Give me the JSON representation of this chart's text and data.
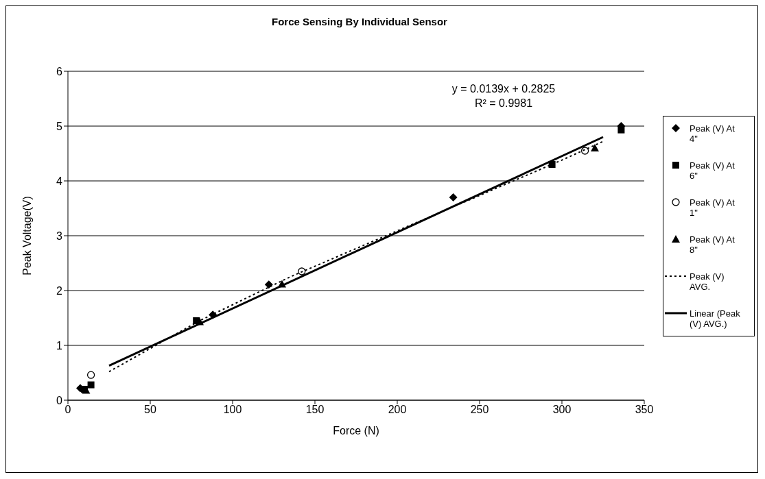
{
  "chart_data": {
    "type": "scatter",
    "title": "Force Sensing By Individual Sensor",
    "xlabel": "Force (N)",
    "ylabel": "Peak Voltage(V)",
    "annotations": [
      "y = 0.0139x + 0.2825",
      "R² = 0.9981"
    ],
    "xlim": [
      0,
      350
    ],
    "xticks": [
      0,
      50,
      100,
      150,
      200,
      250,
      300,
      350
    ],
    "ylim": [
      0,
      6
    ],
    "yticks": [
      0,
      1,
      2,
      3,
      4,
      5,
      6
    ],
    "grid": "y",
    "legend": "right",
    "series": [
      {
        "name": "Peak (V) At 4\"",
        "color": "#000000",
        "marker": "diamond",
        "x": [
          7.5,
          88,
          122,
          234,
          336
        ],
        "values": [
          0.22,
          1.56,
          2.11,
          3.7,
          5.0
        ]
      },
      {
        "name": "Peak (V) At 6\"",
        "color": "#000000",
        "marker": "square",
        "x": [
          10,
          14,
          78,
          294,
          336
        ],
        "values": [
          0.2,
          0.28,
          1.45,
          4.3,
          4.93
        ]
      },
      {
        "name": "Peak (V) At 1\"",
        "color": "#000000",
        "marker": "circle",
        "x": [
          14,
          142,
          314
        ],
        "values": [
          0.46,
          2.35,
          4.55
        ]
      },
      {
        "name": "Peak (V) At 8\"",
        "color": "#000000",
        "marker": "triangle",
        "x": [
          11,
          80,
          130,
          320
        ],
        "values": [
          0.18,
          1.43,
          2.12,
          4.6
        ]
      },
      {
        "name": "Peak (V) AVG.",
        "type": "line",
        "color": "#000000",
        "marker": "none",
        "line_style": "dotted",
        "x": [
          25,
          80,
          135,
          300,
          325
        ],
        "values": [
          0.52,
          1.45,
          2.25,
          4.38,
          4.72
        ]
      },
      {
        "name": "Linear (Peak (V) AVG.)",
        "type": "line",
        "color": "#000000",
        "marker": "none",
        "line_style": "solid",
        "x": [
          25,
          325
        ],
        "values": [
          0.63,
          4.8
        ]
      }
    ]
  }
}
